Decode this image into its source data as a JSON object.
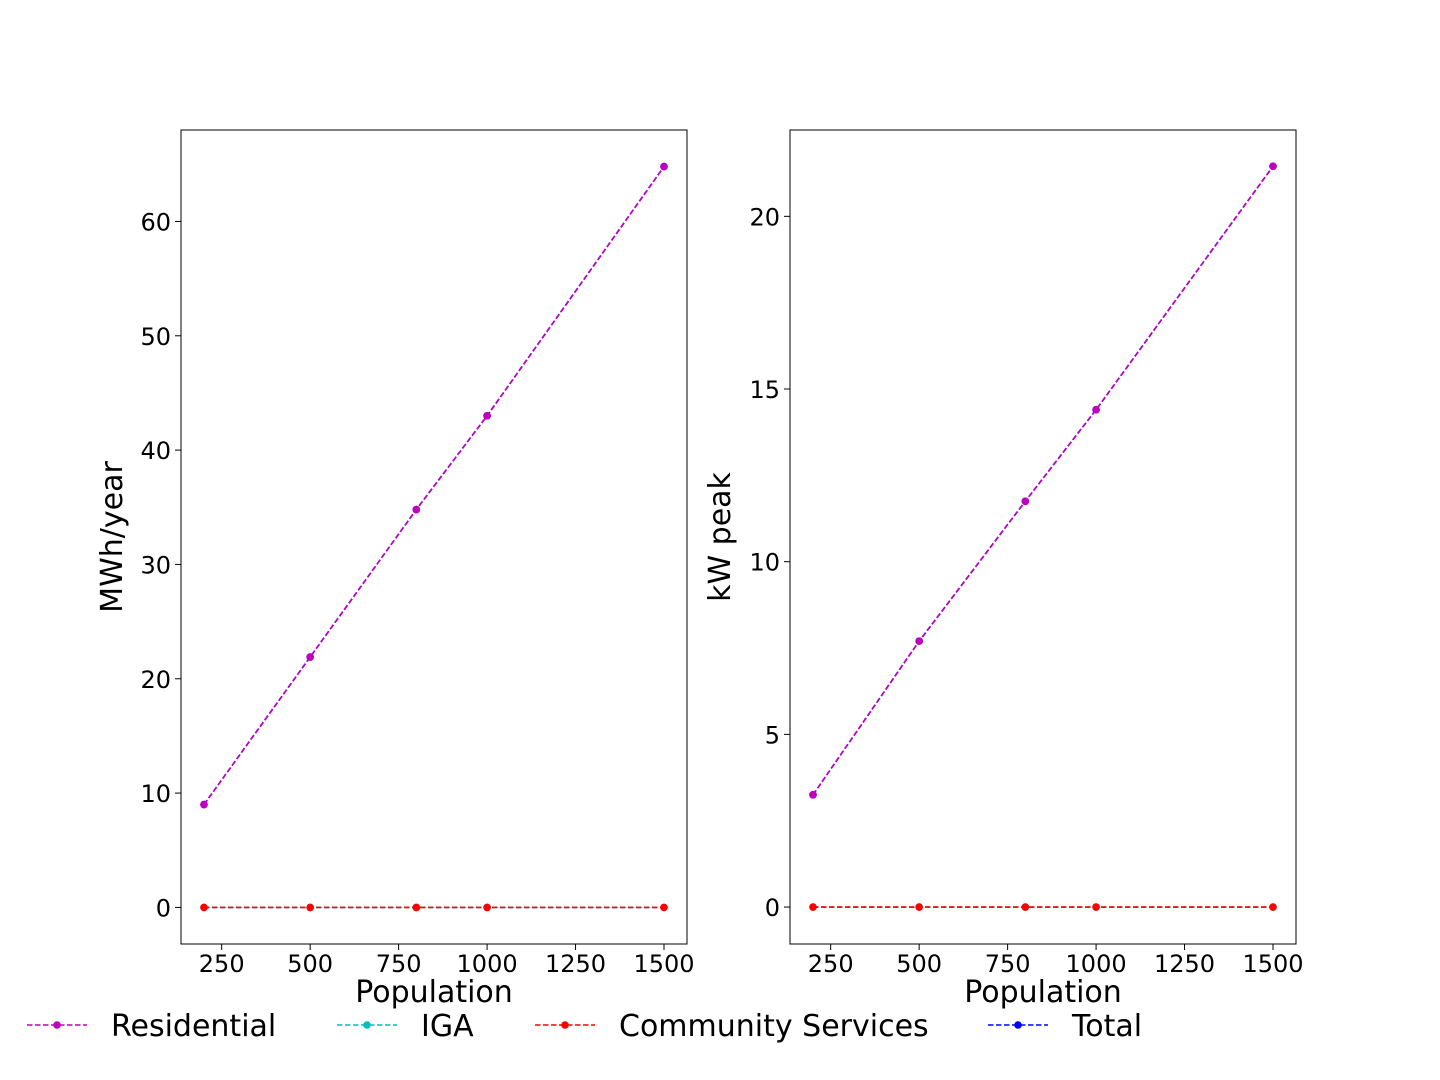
{
  "chart_data": [
    {
      "type": "line",
      "title": "",
      "xlabel": "Population",
      "ylabel": "MWh/year",
      "xlim": [
        135,
        1565
      ],
      "ylim": [
        -3.2,
        68
      ],
      "xticks": [
        250,
        500,
        750,
        1000,
        1250,
        1500
      ],
      "yticks": [
        0,
        10,
        20,
        30,
        40,
        50,
        60
      ],
      "grid": false,
      "x": [
        200,
        500,
        800,
        1000,
        1500
      ],
      "series": [
        {
          "name": "Residential",
          "color": "#bf00bf",
          "values": [
            9.0,
            21.9,
            34.8,
            43.0,
            64.8
          ]
        },
        {
          "name": "IGA",
          "color": "#00bfbf",
          "values": [
            0,
            0,
            0,
            0,
            0
          ]
        },
        {
          "name": "Community Services",
          "color": "#ff0000",
          "values": [
            0,
            0,
            0,
            0,
            0
          ]
        },
        {
          "name": "Total",
          "color": "#0000ff",
          "values": [
            9.0,
            21.9,
            34.8,
            43.0,
            64.8
          ]
        }
      ]
    },
    {
      "type": "line",
      "title": "",
      "xlabel": "Population",
      "ylabel": "kW peak",
      "xlim": [
        135,
        1565
      ],
      "ylim": [
        -1.07,
        22.5
      ],
      "xticks": [
        250,
        500,
        750,
        1000,
        1250,
        1500
      ],
      "yticks": [
        0,
        5,
        10,
        15,
        20
      ],
      "grid": false,
      "x": [
        200,
        500,
        800,
        1000,
        1500
      ],
      "series": [
        {
          "name": "Residential",
          "color": "#bf00bf",
          "values": [
            3.25,
            7.7,
            11.75,
            14.4,
            21.45
          ]
        },
        {
          "name": "IGA",
          "color": "#00bfbf",
          "values": [
            0,
            0,
            0,
            0,
            0
          ]
        },
        {
          "name": "Community Services",
          "color": "#ff0000",
          "values": [
            0,
            0,
            0,
            0,
            0
          ]
        },
        {
          "name": "Total",
          "color": "#0000ff",
          "values": [
            3.25,
            7.7,
            11.75,
            14.4,
            21.45
          ]
        }
      ]
    }
  ],
  "legend": {
    "placement": "bottom",
    "items": [
      {
        "label": "Residential",
        "color": "#bf00bf"
      },
      {
        "label": "IGA",
        "color": "#00bfbf"
      },
      {
        "label": "Community Services",
        "color": "#ff0000"
      },
      {
        "label": "Total",
        "color": "#0000ff"
      }
    ]
  }
}
